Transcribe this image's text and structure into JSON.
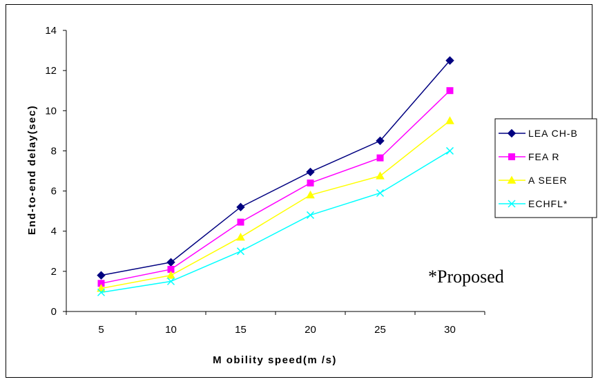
{
  "chart_data": {
    "type": "line",
    "categories": [
      "5",
      "10",
      "15",
      "20",
      "25",
      "30"
    ],
    "x": [
      5,
      10,
      15,
      20,
      25,
      30
    ],
    "series": [
      {
        "name": "LEA CH-B",
        "values": [
          1.8,
          2.45,
          5.2,
          6.95,
          8.5,
          12.5
        ],
        "color": "#000080",
        "marker": "diamond"
      },
      {
        "name": "FEA R",
        "values": [
          1.4,
          2.1,
          4.45,
          6.4,
          7.65,
          11.0
        ],
        "color": "#FF00FF",
        "marker": "square"
      },
      {
        "name": "A SEER",
        "values": [
          1.15,
          1.8,
          3.7,
          5.8,
          6.75,
          9.5
        ],
        "color": "#FFFF00",
        "marker": "triangle"
      },
      {
        "name": "ECHFL*",
        "values": [
          0.95,
          1.5,
          3.0,
          4.8,
          5.9,
          8.0
        ],
        "color": "#00FFFF",
        "marker": "x"
      }
    ],
    "title": "",
    "xlabel": "M obility speed(m /s)",
    "ylabel": "End-to-end delay(sec)",
    "ylim": [
      0,
      14
    ],
    "yticks": [
      0,
      2,
      4,
      6,
      8,
      10,
      12,
      14
    ],
    "grid": false,
    "legend_position": "right",
    "annotation": "*Proposed"
  }
}
